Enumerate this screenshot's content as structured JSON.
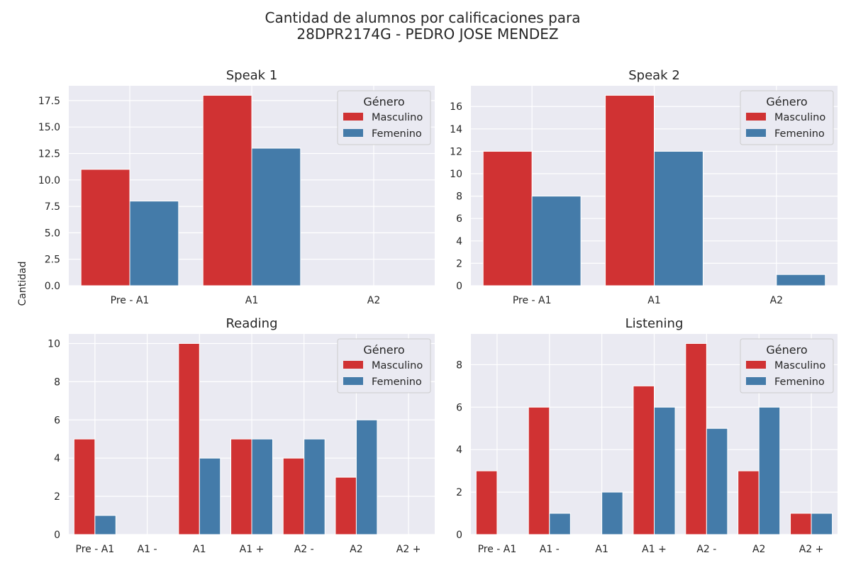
{
  "figure": {
    "title_line1": "Cantidad de alumnos por calificaciones para",
    "title_line2": "28DPR2174G - PEDRO JOSE MENDEZ",
    "ylabel": "Cantidad"
  },
  "colors": {
    "Masculino": "#d03233",
    "Femenino": "#447ba9"
  },
  "chart_data": [
    {
      "type": "bar",
      "title": "Speak 1",
      "categories": [
        "Pre - A1",
        "A1",
        "A2"
      ],
      "series": [
        {
          "name": "Masculino",
          "values": [
            11,
            18,
            0
          ]
        },
        {
          "name": "Femenino",
          "values": [
            8,
            13,
            0
          ]
        }
      ],
      "ylim": [
        0,
        18.9
      ],
      "yticks": [
        0,
        2.5,
        5,
        7.5,
        10,
        12.5,
        15,
        17.5
      ],
      "ytick_labels": [
        "0.0",
        "2.5",
        "5.0",
        "7.5",
        "10.0",
        "12.5",
        "15.0",
        "17.5"
      ],
      "legend": {
        "title": "Género",
        "placement": "top-right"
      },
      "grid": true
    },
    {
      "type": "bar",
      "title": "Speak 2",
      "categories": [
        "Pre - A1",
        "A1",
        "A2"
      ],
      "series": [
        {
          "name": "Masculino",
          "values": [
            12,
            17,
            0
          ]
        },
        {
          "name": "Femenino",
          "values": [
            8,
            12,
            1
          ]
        }
      ],
      "ylim": [
        0,
        17.85
      ],
      "yticks": [
        0,
        2,
        4,
        6,
        8,
        10,
        12,
        14,
        16
      ],
      "ytick_labels": [
        "0",
        "2",
        "4",
        "6",
        "8",
        "10",
        "12",
        "14",
        "16"
      ],
      "legend": {
        "title": "Género",
        "placement": "top-right"
      },
      "grid": true
    },
    {
      "type": "bar",
      "title": "Reading",
      "categories": [
        "Pre - A1",
        "A1 -",
        "A1",
        "A1 +",
        "A2 -",
        "A2",
        "A2 +"
      ],
      "series": [
        {
          "name": "Masculino",
          "values": [
            5,
            0,
            10,
            5,
            4,
            3,
            0
          ]
        },
        {
          "name": "Femenino",
          "values": [
            1,
            0,
            4,
            5,
            5,
            6,
            0
          ]
        }
      ],
      "ylim": [
        0,
        10.5
      ],
      "yticks": [
        0,
        2,
        4,
        6,
        8,
        10
      ],
      "ytick_labels": [
        "0",
        "2",
        "4",
        "6",
        "8",
        "10"
      ],
      "legend": {
        "title": "Género",
        "placement": "top-right"
      },
      "grid": true
    },
    {
      "type": "bar",
      "title": "Listening",
      "categories": [
        "Pre - A1",
        "A1 -",
        "A1",
        "A1 +",
        "A2 -",
        "A2",
        "A2 +"
      ],
      "series": [
        {
          "name": "Masculino",
          "values": [
            3,
            6,
            0,
            7,
            9,
            3,
            1
          ]
        },
        {
          "name": "Femenino",
          "values": [
            0,
            1,
            2,
            6,
            5,
            6,
            1
          ]
        }
      ],
      "ylim": [
        0,
        9.45
      ],
      "yticks": [
        0,
        2,
        4,
        6,
        8
      ],
      "ytick_labels": [
        "0",
        "2",
        "4",
        "6",
        "8"
      ],
      "legend": {
        "title": "Género",
        "placement": "top-right"
      },
      "grid": true
    }
  ]
}
